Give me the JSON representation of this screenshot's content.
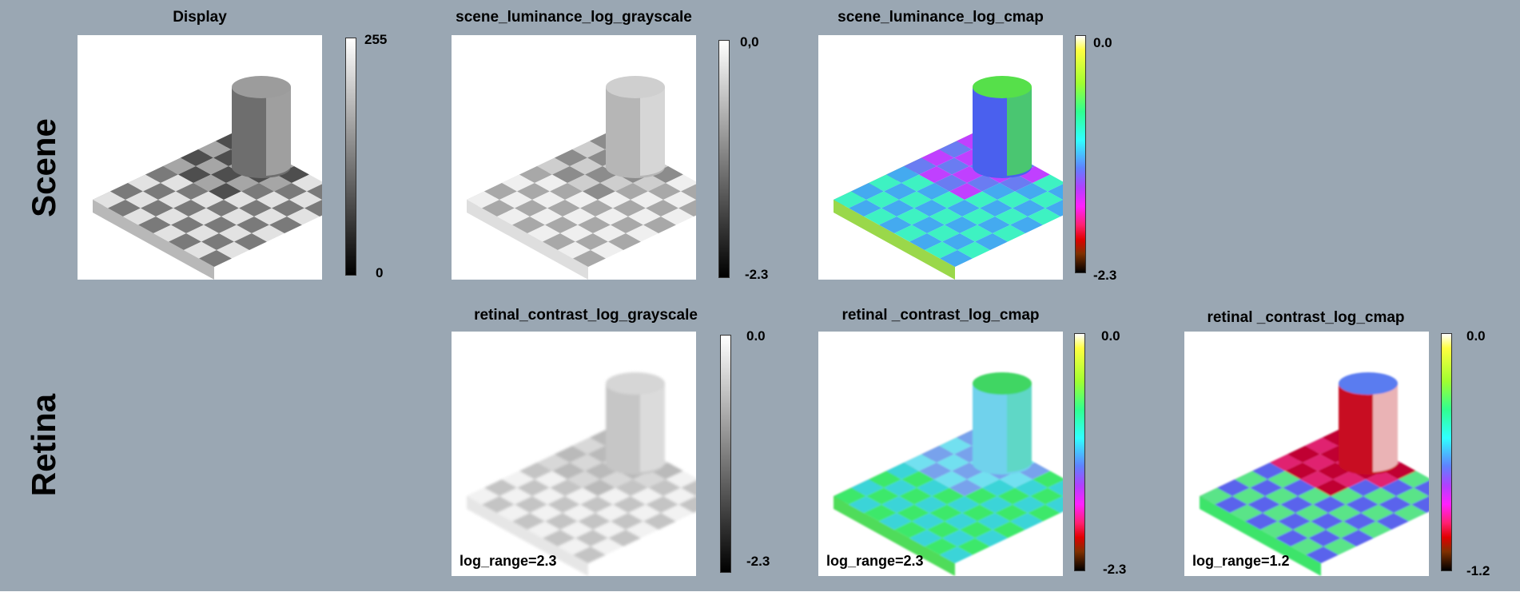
{
  "row_labels": {
    "scene": "Scene",
    "retina": "Retina"
  },
  "panels": {
    "display": {
      "title": "Display",
      "scale_top": "255",
      "scale_bottom": "0"
    },
    "scene_gray": {
      "title": "scene_luminance_log_grayscale",
      "scale_top": "0,0",
      "scale_bottom": "-2.3"
    },
    "scene_cmap": {
      "title": "scene_luminance_log_cmap",
      "scale_top": "0.0",
      "scale_bottom": "-2.3"
    },
    "retina_gray": {
      "title": "retinal_contrast_log_grayscale",
      "scale_top": "0.0",
      "scale_bottom": "-2.3",
      "log_range": "log_range=2.3"
    },
    "retina_cmap_1": {
      "title": "retinal _contrast_log_cmap",
      "scale_top": "0.0",
      "scale_bottom": "-2.3",
      "log_range": "log_range=2.3"
    },
    "retina_cmap_2": {
      "title": "retinal _contrast_log_cmap",
      "scale_top": "0.0",
      "scale_bottom": "-1.2",
      "log_range": "log_range=1.2"
    }
  },
  "colors": {
    "background": "#9aa7b3",
    "panel": "#ffffff"
  }
}
